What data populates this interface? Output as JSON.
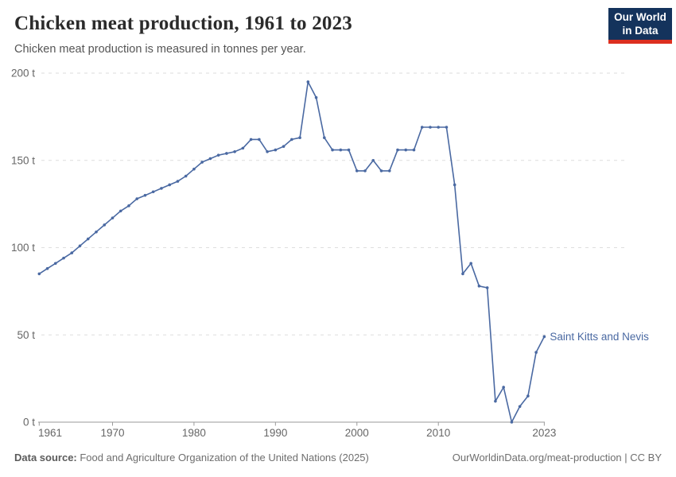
{
  "header": {
    "title": "Chicken meat production, 1961 to 2023",
    "subtitle": "Chicken meat production is measured in tonnes per year.",
    "logo_line1": "Our World",
    "logo_line2": "in Data"
  },
  "chart_data": {
    "type": "line",
    "title": "Chicken meat production, 1961 to 2023",
    "unit": "tonnes",
    "entity": "Saint Kitts and Nevis",
    "x": [
      1961,
      1962,
      1963,
      1964,
      1965,
      1966,
      1967,
      1968,
      1969,
      1970,
      1971,
      1972,
      1973,
      1974,
      1975,
      1976,
      1977,
      1978,
      1979,
      1980,
      1981,
      1982,
      1983,
      1984,
      1985,
      1986,
      1987,
      1988,
      1989,
      1990,
      1991,
      1992,
      1993,
      1994,
      1995,
      1996,
      1997,
      1998,
      1999,
      2000,
      2001,
      2002,
      2003,
      2004,
      2005,
      2006,
      2007,
      2008,
      2009,
      2010,
      2011,
      2012,
      2013,
      2014,
      2015,
      2016,
      2017,
      2018,
      2019,
      2020,
      2021,
      2022,
      2023
    ],
    "series": [
      {
        "name": "Saint Kitts and Nevis",
        "values": [
          85,
          88,
          91,
          94,
          97,
          101,
          105,
          109,
          113,
          117,
          121,
          124,
          128,
          130,
          132,
          134,
          136,
          138,
          141,
          145,
          149,
          151,
          153,
          154,
          155,
          157,
          162,
          162,
          155,
          156,
          158,
          162,
          163,
          195,
          186,
          163,
          156,
          156,
          156,
          144,
          144,
          150,
          144,
          144,
          156,
          156,
          156,
          169,
          169,
          169,
          169,
          136,
          85,
          91,
          78,
          77,
          12,
          20,
          0,
          9,
          15,
          40,
          49
        ]
      }
    ],
    "xlabel": "",
    "ylabel": "",
    "ylim": [
      0,
      200
    ],
    "yticks": [
      0,
      50,
      100,
      150,
      200
    ],
    "ytick_labels": [
      "0 t",
      "50 t",
      "100 t",
      "150 t",
      "200 t"
    ],
    "xticks": [
      1961,
      1970,
      1980,
      1990,
      2000,
      2010,
      2023
    ],
    "grid": "horizontal-dashed",
    "legend_position": "end-of-line-label",
    "line_color": "#4a69a2"
  },
  "footer": {
    "source_label": "Data source:",
    "source_text": " Food and Agriculture Organization of the United Nations (2025)",
    "link_text": "OurWorldinData.org/meat-production | CC BY"
  },
  "colors": {
    "line": "#4a69a2",
    "grid": "#dedede",
    "axis": "#9a9a9a",
    "tick_text": "#666666",
    "logo_bg": "#14335c",
    "logo_accent": "#dc2f20"
  }
}
